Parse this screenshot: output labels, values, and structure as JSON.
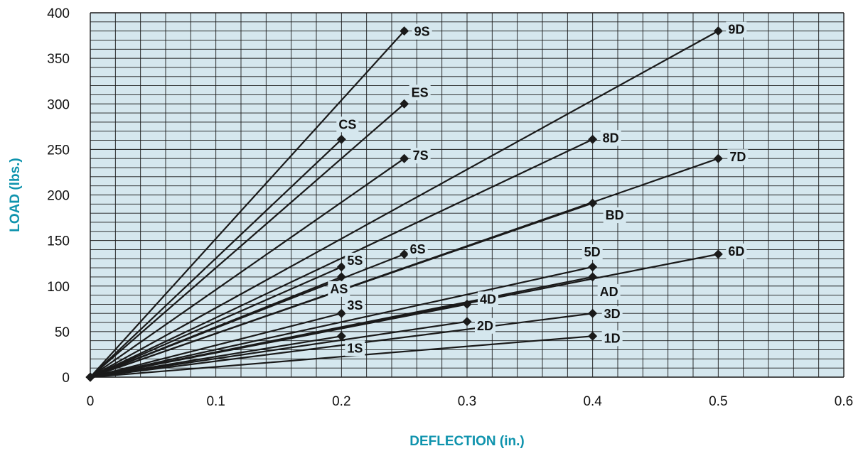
{
  "chart_data": {
    "type": "line",
    "xlabel": "DEFLECTION (in.)",
    "ylabel": "LOAD (lbs.)",
    "xlim": [
      0,
      0.6
    ],
    "ylim": [
      0,
      400
    ],
    "xticks": [
      "0",
      "0.1",
      "0.2",
      "0.3",
      "0.4",
      "0.5",
      "0.6"
    ],
    "yticks": [
      "0",
      "50",
      "100",
      "150",
      "200",
      "250",
      "300",
      "350",
      "400"
    ],
    "grid": true,
    "colors": {
      "plot_background": "#d5e7ee",
      "grid": "#1a1a1a",
      "line": "#1a1a1a",
      "axis_title": "#0e93ad"
    },
    "series": [
      {
        "name": "9S",
        "x": [
          0,
          0.25
        ],
        "y": [
          0,
          380
        ]
      },
      {
        "name": "ES",
        "x": [
          0,
          0.25
        ],
        "y": [
          0,
          300
        ]
      },
      {
        "name": "CS",
        "x": [
          0,
          0.2
        ],
        "y": [
          0,
          261
        ]
      },
      {
        "name": "7S",
        "x": [
          0,
          0.25
        ],
        "y": [
          0,
          240
        ]
      },
      {
        "name": "6S",
        "x": [
          0,
          0.25
        ],
        "y": [
          0,
          135
        ]
      },
      {
        "name": "5S",
        "x": [
          0,
          0.2
        ],
        "y": [
          0,
          121
        ]
      },
      {
        "name": "AS",
        "x": [
          0,
          0.2
        ],
        "y": [
          0,
          110
        ]
      },
      {
        "name": "3S",
        "x": [
          0,
          0.2
        ],
        "y": [
          0,
          70
        ]
      },
      {
        "name": "1S",
        "x": [
          0,
          0.2
        ],
        "y": [
          0,
          45
        ]
      },
      {
        "name": "9D",
        "x": [
          0,
          0.5
        ],
        "y": [
          0,
          380
        ]
      },
      {
        "name": "8D",
        "x": [
          0,
          0.4
        ],
        "y": [
          0,
          261
        ]
      },
      {
        "name": "7D",
        "x": [
          0,
          0.5
        ],
        "y": [
          0,
          240
        ]
      },
      {
        "name": "BD",
        "x": [
          0,
          0.4
        ],
        "y": [
          0,
          191
        ]
      },
      {
        "name": "6D",
        "x": [
          0,
          0.5
        ],
        "y": [
          0,
          135
        ]
      },
      {
        "name": "5D",
        "x": [
          0,
          0.4
        ],
        "y": [
          0,
          121
        ]
      },
      {
        "name": "AD",
        "x": [
          0,
          0.4
        ],
        "y": [
          0,
          110
        ]
      },
      {
        "name": "4D",
        "x": [
          0,
          0.3
        ],
        "y": [
          0,
          80
        ]
      },
      {
        "name": "3D",
        "x": [
          0,
          0.4
        ],
        "y": [
          0,
          70
        ]
      },
      {
        "name": "2D",
        "x": [
          0,
          0.3
        ],
        "y": [
          0,
          61
        ]
      },
      {
        "name": "1D",
        "x": [
          0,
          0.4
        ],
        "y": [
          0,
          45
        ]
      }
    ]
  }
}
